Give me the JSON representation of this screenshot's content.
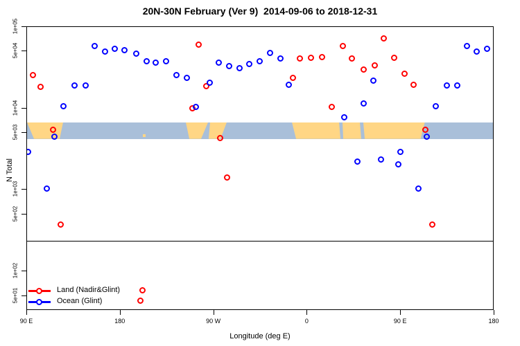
{
  "title": "20N-30N February (Ver 9)  2014-09-06 to 2018-12-31",
  "chart_data": {
    "type": "scatter",
    "title": "20N-30N February (Ver 9)  2014-09-06 to 2018-12-31",
    "xlabel": "Longitude (deg E)",
    "ylabel": "N Total",
    "x_axis": {
      "range_deg": [
        90,
        540
      ],
      "ticks": [
        {
          "deg": 90,
          "label": "90 E"
        },
        {
          "deg": 180,
          "label": "180"
        },
        {
          "deg": 270,
          "label": "90 W"
        },
        {
          "deg": 360,
          "label": "0"
        },
        {
          "deg": 450,
          "label": "90 E"
        },
        {
          "deg": 540,
          "label": "180"
        }
      ]
    },
    "y_axis": {
      "scale": "log10",
      "log_range": [
        1.5172,
        5
      ],
      "ticks": [
        {
          "value": 100000,
          "label": "1e+05"
        },
        {
          "value": 50000,
          "label": "5e+04"
        },
        {
          "value": 10000,
          "label": "1e+04"
        },
        {
          "value": 5000,
          "label": "5e+03"
        },
        {
          "value": 1000,
          "label": "1e+03"
        },
        {
          "value": 500,
          "label": "5e+02"
        },
        {
          "value": 100,
          "label": "1e+02"
        },
        {
          "value": 50,
          "label": "5e+01"
        }
      ]
    },
    "divider_value": 236,
    "map_band": {
      "value_top": 6760,
      "value_bottom": 4240,
      "ocean_color": "#a9bfd9",
      "land_color": "#ffd685",
      "land_segments": [
        {
          "t": [
            90,
            124.7
          ],
          "b": [
            96.7,
            121.4
          ]
        },
        {
          "t": [
            242.9,
            264.3
          ],
          "b": [
            246.3,
            257.6
          ]
        },
        {
          "t": [
            266.3,
            282.3
          ],
          "b": [
            264.9,
            276.3
          ]
        },
        {
          "t": [
            345.1,
            473.0
          ],
          "b": [
            349.1,
            469.0
          ]
        }
      ],
      "ocean_gaps": [
        {
          "t": [
            390.5,
            393.8
          ],
          "b": [
            391.8,
            394.5
          ]
        },
        {
          "t": [
            410.5,
            413.8
          ],
          "b": [
            411.8,
            415.2
          ]
        }
      ],
      "islands_deg": [
        202.8
      ]
    },
    "series": [
      {
        "name": "Land (Nadir&Glint)",
        "color": "#ff0000",
        "points": [
          {
            "deg": 96.0,
            "value": 25500
          },
          {
            "deg": 103.4,
            "value": 18300
          },
          {
            "deg": 115.4,
            "value": 5460
          },
          {
            "deg": 122.7,
            "value": 376
          },
          {
            "deg": 199.5,
            "value": 43
          },
          {
            "deg": 201.5,
            "value": 58
          },
          {
            "deg": 249.6,
            "value": 10000
          },
          {
            "deg": 255.6,
            "value": 60200
          },
          {
            "deg": 263.0,
            "value": 18700
          },
          {
            "deg": 276.3,
            "value": 4330
          },
          {
            "deg": 283.0,
            "value": 1400
          },
          {
            "deg": 346.4,
            "value": 23600
          },
          {
            "deg": 353.1,
            "value": 40800
          },
          {
            "deg": 363.8,
            "value": 41500
          },
          {
            "deg": 374.5,
            "value": 42400
          },
          {
            "deg": 383.8,
            "value": 10400
          },
          {
            "deg": 394.5,
            "value": 57900
          },
          {
            "deg": 403.2,
            "value": 40800
          },
          {
            "deg": 414.5,
            "value": 29900
          },
          {
            "deg": 425.2,
            "value": 33300
          },
          {
            "deg": 433.9,
            "value": 71800
          },
          {
            "deg": 443.9,
            "value": 41500
          },
          {
            "deg": 453.9,
            "value": 26500
          },
          {
            "deg": 462.6,
            "value": 19400
          },
          {
            "deg": 473.9,
            "value": 5460
          },
          {
            "deg": 480.6,
            "value": 376
          }
        ]
      },
      {
        "name": "Ocean (Glint)",
        "color": "#0000ff",
        "points": [
          {
            "deg": 91.3,
            "value": 2930
          },
          {
            "deg": 109.4,
            "value": 1040
          },
          {
            "deg": 116.7,
            "value": 4500
          },
          {
            "deg": 125.4,
            "value": 10600
          },
          {
            "deg": 136.1,
            "value": 19000
          },
          {
            "deg": 146.7,
            "value": 19000
          },
          {
            "deg": 155.4,
            "value": 57900
          },
          {
            "deg": 165.4,
            "value": 49600
          },
          {
            "deg": 174.8,
            "value": 53600
          },
          {
            "deg": 184.2,
            "value": 51500
          },
          {
            "deg": 195.5,
            "value": 46700
          },
          {
            "deg": 205.5,
            "value": 37700
          },
          {
            "deg": 214.2,
            "value": 36300
          },
          {
            "deg": 224.2,
            "value": 37700
          },
          {
            "deg": 234.2,
            "value": 25500
          },
          {
            "deg": 244.3,
            "value": 23600
          },
          {
            "deg": 253.0,
            "value": 10400
          },
          {
            "deg": 266.3,
            "value": 20600
          },
          {
            "deg": 275.0,
            "value": 36300
          },
          {
            "deg": 285.0,
            "value": 32900
          },
          {
            "deg": 295.0,
            "value": 31000
          },
          {
            "deg": 304.3,
            "value": 34900
          },
          {
            "deg": 314.4,
            "value": 37700
          },
          {
            "deg": 324.4,
            "value": 47600
          },
          {
            "deg": 334.4,
            "value": 40800
          },
          {
            "deg": 342.4,
            "value": 19400
          },
          {
            "deg": 395.8,
            "value": 7760
          },
          {
            "deg": 408.5,
            "value": 2230
          },
          {
            "deg": 414.5,
            "value": 11500
          },
          {
            "deg": 423.9,
            "value": 21800
          },
          {
            "deg": 431.2,
            "value": 2360
          },
          {
            "deg": 447.9,
            "value": 2060
          },
          {
            "deg": 449.9,
            "value": 2930
          },
          {
            "deg": 467.3,
            "value": 1040
          },
          {
            "deg": 475.3,
            "value": 4500
          },
          {
            "deg": 484.0,
            "value": 10600
          },
          {
            "deg": 494.6,
            "value": 19000
          },
          {
            "deg": 504.7,
            "value": 19000
          },
          {
            "deg": 514.0,
            "value": 57900
          },
          {
            "deg": 523.4,
            "value": 49600
          },
          {
            "deg": 533.4,
            "value": 53600
          }
        ]
      }
    ],
    "legend": {
      "position": "bottom-left",
      "entries": [
        {
          "label": "Land (Nadir&Glint)",
          "color": "#ff0000"
        },
        {
          "label": "Ocean (Glint)",
          "color": "#0000ff"
        }
      ]
    }
  }
}
